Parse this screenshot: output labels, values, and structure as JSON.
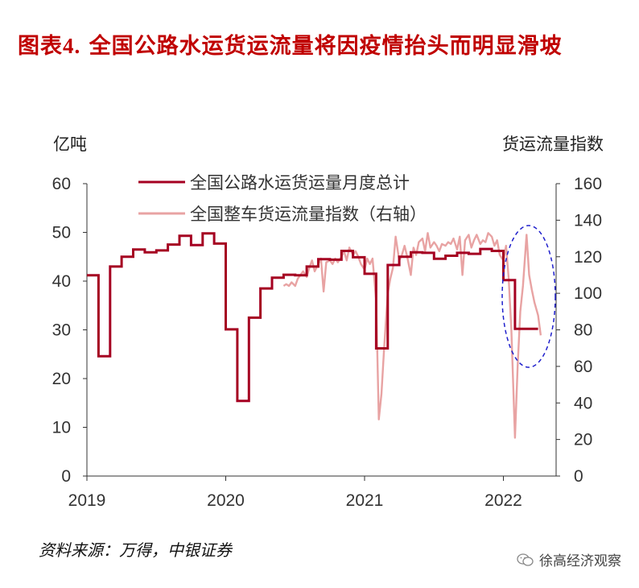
{
  "title": {
    "prefix": "图表",
    "number": "4.",
    "text": "全国公路水运货运流量将因疫情抬头而明显滑坡"
  },
  "left_unit": "亿吨",
  "right_unit": "货运流量指数",
  "source": "资料来源：万得，中银证券",
  "watermark": "徐高经济观察",
  "colors": {
    "series1": "#a50021",
    "series2": "#e8a3a3",
    "highlight": "#1f1fcc",
    "title": "#c00000"
  },
  "chart_data": {
    "type": "line",
    "x_ticks": [
      "2019",
      "2020",
      "2021",
      "2022"
    ],
    "x_range": [
      "2019-01",
      "2022-05"
    ],
    "left_axis": {
      "label": "亿吨",
      "ylim": [
        0,
        60
      ],
      "ticks": [
        0,
        10,
        20,
        30,
        40,
        50,
        60
      ]
    },
    "right_axis": {
      "label": "货运流量指数",
      "ylim": [
        0,
        160
      ],
      "ticks": [
        0,
        20,
        40,
        60,
        80,
        100,
        120,
        140,
        160
      ]
    },
    "legend_position": "top-center",
    "grid": false,
    "annotations": [
      "dashed blue ellipse highlighting early 2022 decline"
    ],
    "series": [
      {
        "name": "全国公路水运货运量月度总计",
        "axis": "left",
        "style": "step",
        "points": [
          [
            "2019-01",
            41.2
          ],
          [
            "2019-02",
            24.6
          ],
          [
            "2019-03",
            43.0
          ],
          [
            "2019-04",
            45.0
          ],
          [
            "2019-05",
            46.5
          ],
          [
            "2019-06",
            45.9
          ],
          [
            "2019-07",
            46.3
          ],
          [
            "2019-08",
            47.5
          ],
          [
            "2019-09",
            49.3
          ],
          [
            "2019-10",
            47.4
          ],
          [
            "2019-11",
            49.8
          ],
          [
            "2019-12",
            47.7
          ],
          [
            "2020-01",
            30.1
          ],
          [
            "2020-02",
            15.4
          ],
          [
            "2020-03",
            32.5
          ],
          [
            "2020-04",
            38.5
          ],
          [
            "2020-05",
            40.7
          ],
          [
            "2020-06",
            41.3
          ],
          [
            "2020-07",
            41.2
          ],
          [
            "2020-08",
            43.0
          ],
          [
            "2020-09",
            44.5
          ],
          [
            "2020-10",
            44.4
          ],
          [
            "2020-11",
            46.2
          ],
          [
            "2020-12",
            44.9
          ],
          [
            "2021-01",
            41.5
          ],
          [
            "2021-02",
            26.2
          ],
          [
            "2021-03",
            43.3
          ],
          [
            "2021-04",
            45.0
          ],
          [
            "2021-05",
            45.9
          ],
          [
            "2021-06",
            45.8
          ],
          [
            "2021-07",
            44.6
          ],
          [
            "2021-08",
            45.2
          ],
          [
            "2021-09",
            45.8
          ],
          [
            "2021-10",
            45.6
          ],
          [
            "2021-11",
            46.6
          ],
          [
            "2021-12",
            46.2
          ],
          [
            "2022-01",
            40.2
          ],
          [
            "2022-02",
            30.2
          ],
          [
            "2022-03",
            30.2
          ]
        ]
      },
      {
        "name": "全国整车货运流量指数（右轴）",
        "axis": "right",
        "style": "line",
        "points": [
          [
            "2020-06-01",
            104
          ],
          [
            "2020-06-08",
            105
          ],
          [
            "2020-06-15",
            104
          ],
          [
            "2020-06-22",
            106
          ],
          [
            "2020-07-01",
            104
          ],
          [
            "2020-07-08",
            108
          ],
          [
            "2020-07-15",
            110
          ],
          [
            "2020-07-22",
            112
          ],
          [
            "2020-08-01",
            109
          ],
          [
            "2020-08-08",
            114
          ],
          [
            "2020-08-15",
            118
          ],
          [
            "2020-08-22",
            112
          ],
          [
            "2020-09-01",
            116
          ],
          [
            "2020-09-08",
            119
          ],
          [
            "2020-09-15",
            101
          ],
          [
            "2020-09-22",
            117
          ],
          [
            "2020-10-01",
            118
          ],
          [
            "2020-10-08",
            116
          ],
          [
            "2020-10-15",
            119
          ],
          [
            "2020-10-22",
            117
          ],
          [
            "2020-11-01",
            120
          ],
          [
            "2020-11-08",
            123
          ],
          [
            "2020-11-15",
            118
          ],
          [
            "2020-11-22",
            125
          ],
          [
            "2020-12-01",
            121
          ],
          [
            "2020-12-08",
            123
          ],
          [
            "2020-12-15",
            120
          ],
          [
            "2020-12-22",
            116
          ],
          [
            "2021-01-01",
            113
          ],
          [
            "2021-01-08",
            119
          ],
          [
            "2021-01-15",
            116
          ],
          [
            "2021-01-22",
            119
          ],
          [
            "2021-02-01",
            96
          ],
          [
            "2021-02-08",
            31
          ],
          [
            "2021-02-15",
            45
          ],
          [
            "2021-02-22",
            70
          ],
          [
            "2021-03-01",
            100
          ],
          [
            "2021-03-08",
            108
          ],
          [
            "2021-03-15",
            114
          ],
          [
            "2021-03-22",
            131
          ],
          [
            "2021-04-01",
            118
          ],
          [
            "2021-04-08",
            121
          ],
          [
            "2021-04-15",
            126
          ],
          [
            "2021-04-22",
            120
          ],
          [
            "2021-05-01",
            110
          ],
          [
            "2021-05-08",
            125
          ],
          [
            "2021-05-15",
            121
          ],
          [
            "2021-05-22",
            128
          ],
          [
            "2021-06-01",
            130
          ],
          [
            "2021-06-08",
            123
          ],
          [
            "2021-06-15",
            133
          ],
          [
            "2021-06-22",
            125
          ],
          [
            "2021-07-01",
            128
          ],
          [
            "2021-07-08",
            126
          ],
          [
            "2021-07-15",
            123
          ],
          [
            "2021-07-22",
            127
          ],
          [
            "2021-08-01",
            126
          ],
          [
            "2021-08-08",
            128
          ],
          [
            "2021-08-15",
            127
          ],
          [
            "2021-08-22",
            130
          ],
          [
            "2021-09-01",
            124
          ],
          [
            "2021-09-08",
            131
          ],
          [
            "2021-09-15",
            110
          ],
          [
            "2021-09-22",
            129
          ],
          [
            "2021-10-01",
            132
          ],
          [
            "2021-10-08",
            125
          ],
          [
            "2021-10-15",
            129
          ],
          [
            "2021-10-22",
            132
          ],
          [
            "2021-11-01",
            127
          ],
          [
            "2021-11-08",
            129
          ],
          [
            "2021-11-15",
            128
          ],
          [
            "2021-11-22",
            133
          ],
          [
            "2021-12-01",
            131
          ],
          [
            "2021-12-08",
            126
          ],
          [
            "2021-12-15",
            129
          ],
          [
            "2021-12-22",
            121
          ],
          [
            "2022-01-01",
            118
          ],
          [
            "2022-01-08",
            126
          ],
          [
            "2022-01-15",
            108
          ],
          [
            "2022-01-22",
            80
          ],
          [
            "2022-02-01",
            21
          ],
          [
            "2022-02-08",
            60
          ],
          [
            "2022-02-15",
            90
          ],
          [
            "2022-02-22",
            104
          ],
          [
            "2022-03-01",
            132
          ],
          [
            "2022-03-08",
            110
          ],
          [
            "2022-03-15",
            102
          ],
          [
            "2022-03-22",
            95
          ],
          [
            "2022-04-01",
            88
          ],
          [
            "2022-04-08",
            77
          ]
        ]
      }
    ]
  }
}
